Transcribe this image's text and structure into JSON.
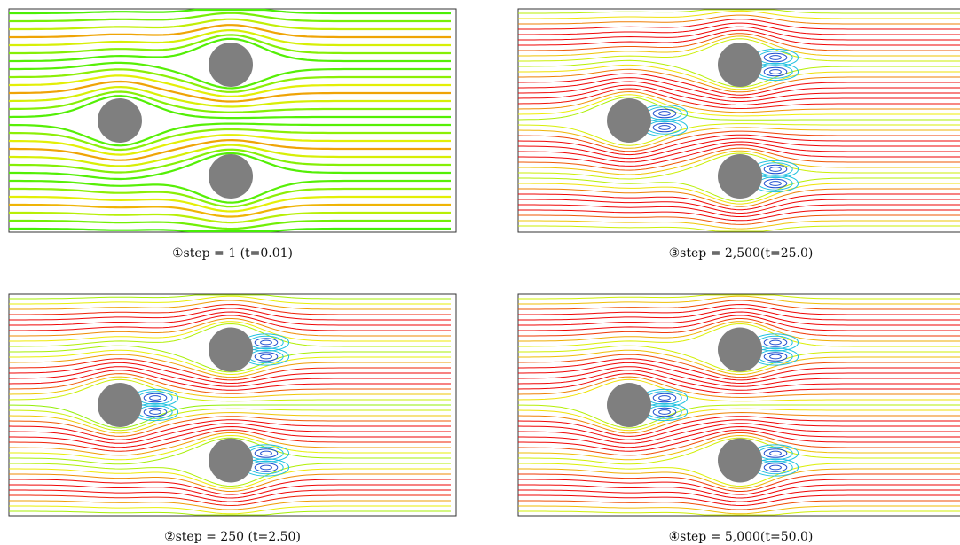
{
  "panels": [
    {
      "caption": "①step = 1 (t=0.01)"
    },
    {
      "caption": "②step = 250 (t=2.50)"
    },
    {
      "caption": "③step = 2,500(t=25.0)"
    },
    {
      "caption": "④step = 5,000(t=50.0)"
    }
  ]
}
